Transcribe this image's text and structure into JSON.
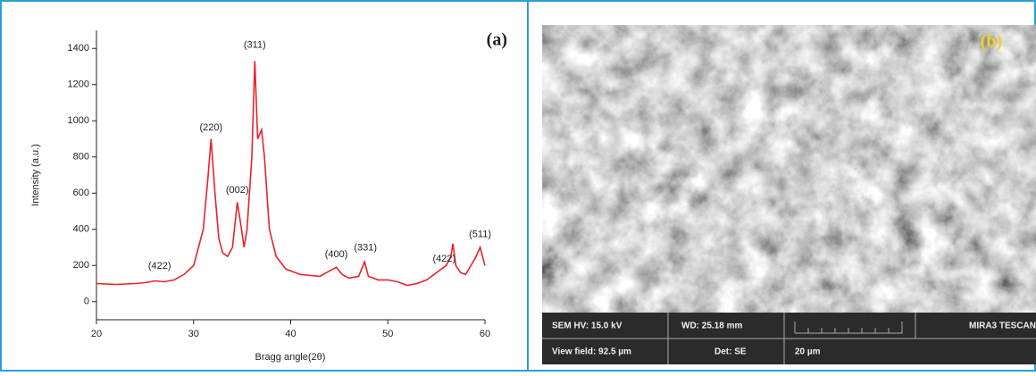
{
  "chart_data": {
    "type": "line",
    "panel_label": "(a)",
    "x_label": "Bragg angle(2θ)",
    "y_label": "Intensity (a.u.)",
    "color": "#e8222a",
    "x": [
      20,
      22,
      24,
      25,
      26,
      27,
      28,
      29,
      30,
      31,
      31.5,
      31.8,
      32.2,
      32.6,
      33,
      33.5,
      34,
      34.5,
      34.8,
      35.2,
      35.5,
      36,
      36.3,
      36.6,
      37,
      37.3,
      37.8,
      38.5,
      39.5,
      41,
      43,
      44,
      44.7,
      45.3,
      46,
      47,
      47.6,
      48,
      49,
      50,
      51,
      52,
      53,
      54,
      55,
      56,
      56.5,
      56.7,
      57,
      57.5,
      58,
      59,
      59.5,
      60
    ],
    "values": [
      100,
      95,
      100,
      105,
      115,
      110,
      120,
      150,
      200,
      400,
      700,
      900,
      600,
      350,
      270,
      250,
      300,
      550,
      450,
      300,
      400,
      800,
      1330,
      900,
      950,
      800,
      400,
      250,
      180,
      150,
      140,
      170,
      190,
      150,
      130,
      140,
      220,
      140,
      120,
      120,
      110,
      90,
      100,
      120,
      160,
      200,
      250,
      320,
      200,
      160,
      150,
      240,
      300,
      200
    ],
    "xlim": [
      20,
      60
    ],
    "ylim": [
      -100,
      1500
    ],
    "xticks": [
      20,
      30,
      40,
      50,
      60
    ],
    "yticks": [
      0,
      200,
      400,
      600,
      800,
      1000,
      1200,
      1400
    ],
    "annotations": [
      {
        "label": "(422)",
        "x": 26.5,
        "y": 197
      },
      {
        "label": "(220)",
        "x": 31.8,
        "y": 961
      },
      {
        "label": "(002)",
        "x": 34.5,
        "y": 616
      },
      {
        "label": "(311)",
        "x": 36.3,
        "y": 1419
      },
      {
        "label": "(400)",
        "x": 44.7,
        "y": 261
      },
      {
        "label": "(331)",
        "x": 47.7,
        "y": 296
      },
      {
        "label": "(422)",
        "x": 55.8,
        "y": 236
      },
      {
        "label": "(511)",
        "x": 59.5,
        "y": 370
      }
    ]
  },
  "sem_image": {
    "panel_label": "(b)",
    "hv": "SEM HV: 15.0 kV",
    "wd": "WD: 25.18 mm",
    "maker": "MIRA3 TESCAN",
    "view_field": "View field: 92.5 µm",
    "detector": "Det: SE",
    "scale": "20 µm"
  }
}
